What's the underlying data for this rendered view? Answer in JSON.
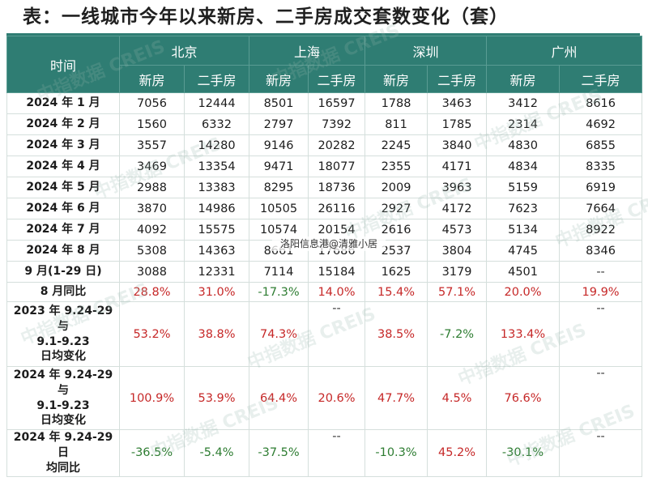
{
  "title": "表：一线城市今年以来新房、二手房成交套数变化（套）",
  "header": {
    "time_label": "时间",
    "cities": [
      "北京",
      "上海",
      "深圳",
      "广州"
    ],
    "sub": [
      "新房",
      "二手房"
    ]
  },
  "rows": [
    {
      "label": "2024 年 1 月",
      "cells": [
        "7056",
        "12444",
        "8501",
        "16597",
        "1788",
        "3463",
        "3412",
        "8616"
      ]
    },
    {
      "label": "2024 年 2 月",
      "cells": [
        "1560",
        "6332",
        "2797",
        "7392",
        "811",
        "1785",
        "2314",
        "4692"
      ]
    },
    {
      "label": "2024 年 3 月",
      "cells": [
        "3557",
        "14280",
        "9146",
        "20282",
        "2245",
        "3840",
        "4830",
        "6855"
      ]
    },
    {
      "label": "2024 年 4 月",
      "cells": [
        "3469",
        "13354",
        "9471",
        "18077",
        "2355",
        "4171",
        "4834",
        "8335"
      ]
    },
    {
      "label": "2024 年 5 月",
      "cells": [
        "2988",
        "13383",
        "8295",
        "18736",
        "2009",
        "3963",
        "5159",
        "6919"
      ]
    },
    {
      "label": "2024 年 6 月",
      "cells": [
        "3870",
        "14986",
        "10505",
        "26116",
        "2927",
        "4172",
        "7623",
        "7664"
      ]
    },
    {
      "label": "2024 年 7 月",
      "cells": [
        "4092",
        "15575",
        "10574",
        "20154",
        "2616",
        "4573",
        "5134",
        "8922"
      ]
    },
    {
      "label": "2024 年 8 月",
      "cells": [
        "5308",
        "14363",
        "8661",
        "17686",
        "2537",
        "3804",
        "4745",
        "8346"
      ]
    },
    {
      "label": "9 月(1-29 日)",
      "cells": [
        "3088",
        "12331",
        "7114",
        "15184",
        "1625",
        "3179",
        "4501",
        "--"
      ]
    }
  ],
  "rate_rows": [
    {
      "label": [
        "8 月同比"
      ],
      "cells": [
        "28.8%",
        "31.0%",
        "-17.3%",
        "14.0%",
        "15.4%",
        "57.1%",
        "20.0%",
        "19.9%"
      ]
    },
    {
      "label": [
        "2023 年 9.24-29 与",
        "9.1-9.23",
        "日均变化"
      ],
      "cells": [
        "53.2%",
        "38.8%",
        "74.3%",
        "--",
        "38.5%",
        "-7.2%",
        "133.4%",
        "--"
      ]
    },
    {
      "label": [
        "2024 年 9.24-29 与",
        "9.1-9.23",
        "日均变化"
      ],
      "cells": [
        "100.9%",
        "53.9%",
        "64.4%",
        "20.6%",
        "47.7%",
        "4.5%",
        "76.6%",
        "--"
      ]
    },
    {
      "label": [
        "2024 年 9.24-29 日",
        "均同比"
      ],
      "cells": [
        "-36.5%",
        "-5.4%",
        "-37.5%",
        "--",
        "-10.3%",
        "45.2%",
        "-30.1%",
        "--"
      ]
    }
  ],
  "overlay": "洛阳信息港@清雅小居",
  "watermarks": [
    "中指数据 CREIS"
  ],
  "colors": {
    "header_bg": "#2f7d73",
    "positive": "#c62828",
    "negative": "#2e7d32"
  }
}
